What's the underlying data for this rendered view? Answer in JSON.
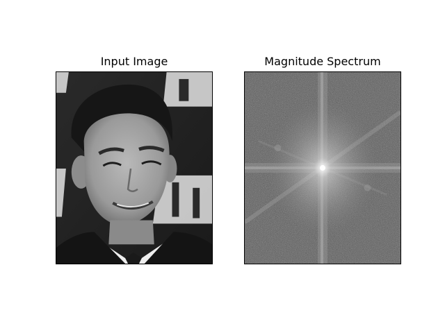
{
  "figure": {
    "background": "#ffffff",
    "panels": [
      {
        "title": "Input Image",
        "content": "grayscale portrait photograph of a smiling man in a dark suit in front of a logo backdrop"
      },
      {
        "title": "Magnitude Spectrum",
        "content": "grayscale 2D Fourier magnitude spectrum with bright center and cross-shaped streaks"
      }
    ]
  }
}
